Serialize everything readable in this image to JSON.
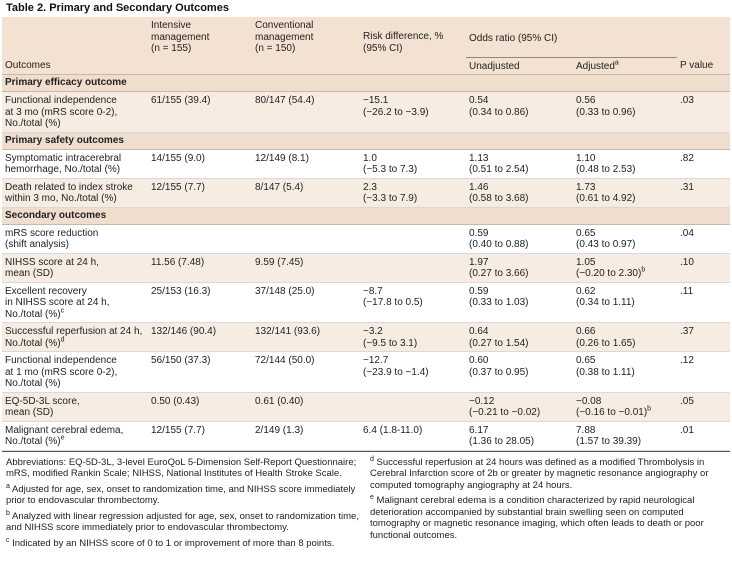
{
  "title": "Table 2. Primary and Secondary Outcomes",
  "headers": {
    "outcomes": "Outcomes",
    "intensive_l1": "Intensive",
    "intensive_l2": "management",
    "intensive_l3": "(n = 155)",
    "conventional_l1": "Conventional",
    "conventional_l2": "management",
    "conventional_l3": "(n = 150)",
    "risk_l1": "Risk difference, %",
    "risk_l2": "(95% CI)",
    "odds": "Odds ratio (95% CI)",
    "unadjusted": "Unadjusted",
    "adjusted": "Adjusted",
    "adjusted_sup": "a",
    "pvalue": "P value"
  },
  "sections": [
    {
      "name": "Primary efficacy outcome",
      "rows": [
        {
          "outcome": [
            "Functional independence",
            "at 3 mo (mRS score 0-2),",
            "No./total (%)"
          ],
          "intensive": "61/155 (39.4)",
          "conventional": "80/147 (54.4)",
          "risk": [
            "−15.1",
            "(−26.2 to −3.9)"
          ],
          "unadj": [
            "0.54",
            "(0.34 to 0.86)"
          ],
          "adj": [
            "0.56",
            "(0.33 to 0.96)"
          ],
          "p": ".03"
        }
      ]
    },
    {
      "name": "Primary safety outcomes",
      "rows": [
        {
          "outcome": [
            "Symptomatic intracerebral",
            "hemorrhage, No./total (%)"
          ],
          "intensive": "14/155 (9.0)",
          "conventional": "12/149 (8.1)",
          "risk": [
            "1.0",
            "(−5.3 to 7.3)"
          ],
          "unadj": [
            "1.13",
            "(0.51 to 2.54)"
          ],
          "adj": [
            "1.10",
            "(0.48 to 2.53)"
          ],
          "p": ".82"
        },
        {
          "outcome": [
            "Death related to index stroke",
            "within 3 mo, No./total (%)"
          ],
          "intensive": "12/155 (7.7)",
          "conventional": "8/147 (5.4)",
          "risk": [
            "2.3",
            "(−3.3 to 7.9)"
          ],
          "unadj": [
            "1.46",
            "(0.58 to 3.68)"
          ],
          "adj": [
            "1.73",
            "(0.61 to 4.92)"
          ],
          "p": ".31"
        }
      ]
    },
    {
      "name": "Secondary outcomes",
      "rows": [
        {
          "outcome": [
            "mRS score reduction",
            "(shift analysis)"
          ],
          "intensive": "",
          "conventional": "",
          "risk": [
            "",
            ""
          ],
          "unadj": [
            "0.59",
            "(0.40 to 0.88)"
          ],
          "adj": [
            "0.65",
            "(0.43 to 0.97)"
          ],
          "p": ".04"
        },
        {
          "outcome": [
            "NIHSS score at 24 h,",
            "mean (SD)"
          ],
          "intensive": "11.56 (7.48)",
          "conventional": "9.59 (7.45)",
          "risk": [
            "",
            ""
          ],
          "unadj": [
            "1.97",
            "(0.27 to 3.66)"
          ],
          "adj": [
            "1.05",
            "(−0.20 to 2.30)"
          ],
          "adj_sup": "b",
          "p": ".10"
        },
        {
          "outcome": [
            "Excellent recovery",
            "in NIHSS score at 24 h,",
            "No./total (%)"
          ],
          "outcome_sup": "c",
          "intensive": "25/153 (16.3)",
          "conventional": "37/148 (25.0)",
          "risk": [
            "−8.7",
            "(−17.8 to 0.5)"
          ],
          "unadj": [
            "0.59",
            "(0.33 to 1.03)"
          ],
          "adj": [
            "0.62",
            "(0.34 to 1.11)"
          ],
          "p": ".11"
        },
        {
          "outcome": [
            "Successful reperfusion at 24 h,",
            "No./total (%)"
          ],
          "outcome_sup": "d",
          "intensive": "132/146 (90.4)",
          "conventional": "132/141 (93.6)",
          "risk": [
            "−3.2",
            "(−9.5 to 3.1)"
          ],
          "unadj": [
            "0.64",
            "(0.27 to 1.54)"
          ],
          "adj": [
            "0.66",
            "(0.26 to 1.65)"
          ],
          "p": ".37"
        },
        {
          "outcome": [
            "Functional independence",
            "at 1 mo (mRS score 0-2),",
            "No./total (%)"
          ],
          "intensive": "56/150 (37.3)",
          "conventional": "72/144 (50.0)",
          "risk": [
            "−12.7",
            "(−23.9 to −1.4)"
          ],
          "unadj": [
            "0.60",
            "(0.37 to 0.95)"
          ],
          "adj": [
            "0.65",
            "(0.38 to 1.11)"
          ],
          "p": ".12"
        },
        {
          "outcome": [
            "EQ-5D-3L score,",
            "mean (SD)"
          ],
          "intensive": "0.50 (0.43)",
          "conventional": "0.61 (0.40)",
          "risk": [
            "",
            ""
          ],
          "unadj": [
            "−0.12",
            "(−0.21 to −0.02)"
          ],
          "adj": [
            "−0.08",
            "(−0.16 to −0.01)"
          ],
          "adj_sup": "b",
          "p": ".05"
        },
        {
          "outcome": [
            "Malignant cerebral edema,",
            "No./total (%)"
          ],
          "outcome_sup": "e",
          "intensive": "12/155 (7.7)",
          "conventional": "2/149 (1.3)",
          "risk": [
            "6.4 (1.8-11.0)",
            ""
          ],
          "unadj": [
            "6.17",
            "(1.36 to 28.05)"
          ],
          "adj": [
            "7.88",
            "(1.57 to 39.39)"
          ],
          "p": ".01"
        }
      ]
    }
  ],
  "footnotes": {
    "abbrev": "Abbreviations: EQ-5D-3L, 3-level EuroQoL 5-Dimension Self-Report Questionnaire; mRS, modified Rankin Scale; NIHSS, National Institutes of Health Stroke Scale.",
    "a_mark": "a",
    "a": " Adjusted for age, sex, onset to randomization time, and NIHSS score immediately prior to endovascular thrombectomy.",
    "b_mark": "b",
    "b": " Analyzed with linear regression adjusted for age, sex, onset to randomization time, and NIHSS score immediately prior to endovascular thrombectomy.",
    "c_mark": "c",
    "c": " Indicated by an NIHSS score of 0 to 1 or improvement of more than 8 points.",
    "d_mark": "d",
    "d": " Successful reperfusion at 24 hours was defined as a modified Thrombolysis in Cerebral Infarction score of 2b or greater by magnetic resonance angiography or computed tomography angiography at 24 hours.",
    "e_mark": "e",
    "e": " Malignant cerebral edema is a condition characterized by rapid neurological deterioration accompanied by substantial brain swelling seen on computed tomography or magnetic resonance imaging, which often leads to death or poor functional outcomes."
  }
}
